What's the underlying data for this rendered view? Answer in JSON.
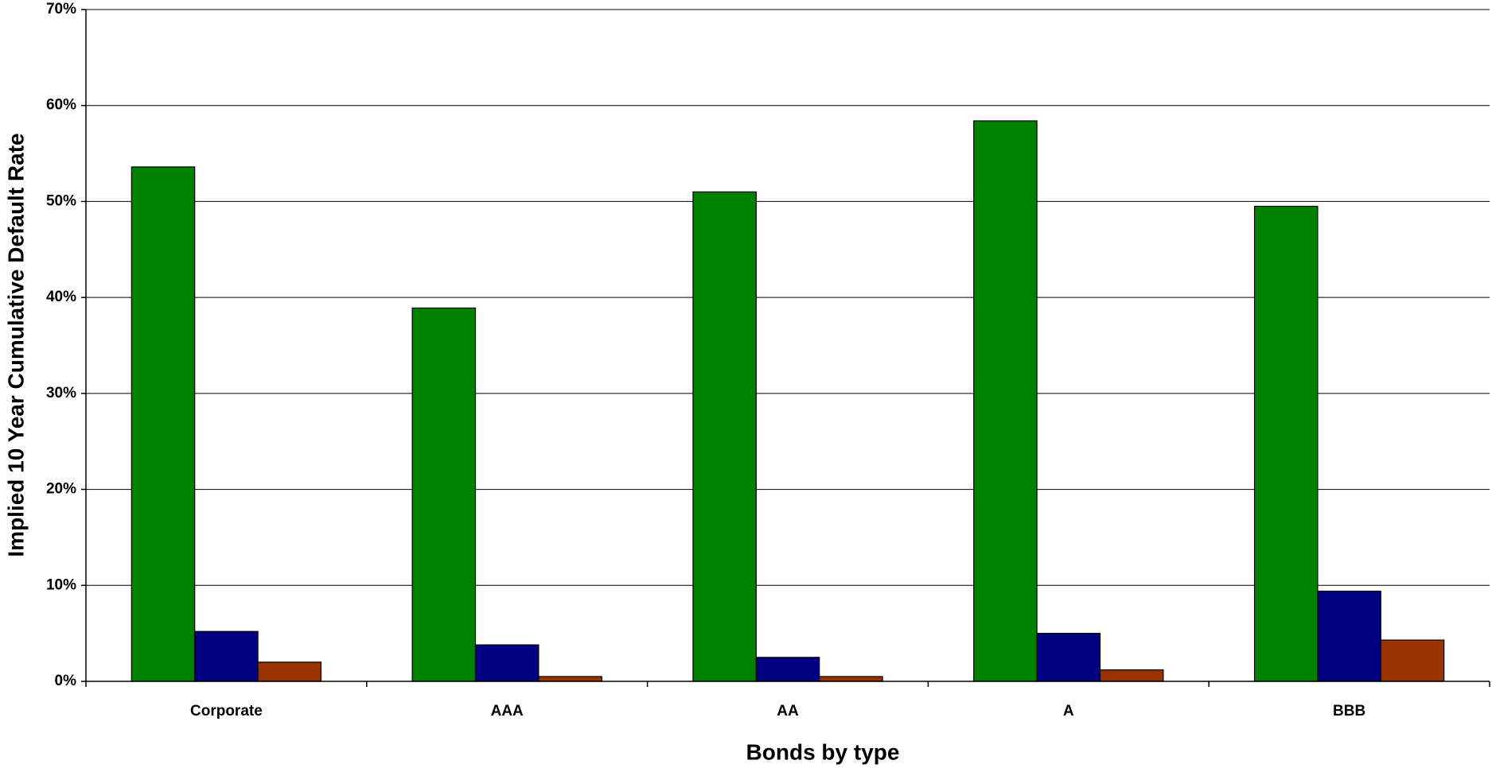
{
  "chart_data": {
    "type": "bar",
    "x_label": "Bonds by type",
    "y_label": "Implied 10 Year Cumulative Default Rate",
    "categories": [
      "Corporate",
      "AAA",
      "AA",
      "A",
      "BBB"
    ],
    "series": [
      {
        "color": "#008000",
        "values": [
          53.6,
          38.9,
          51.0,
          58.4,
          49.5
        ]
      },
      {
        "color": "#000080",
        "values": [
          5.2,
          3.8,
          2.5,
          5.0,
          9.4
        ]
      },
      {
        "color": "#993300",
        "values": [
          2.0,
          0.5,
          0.5,
          1.2,
          4.3
        ]
      }
    ],
    "ylim": [
      0,
      70
    ],
    "yticks": [
      {
        "value": 0,
        "label": "0%"
      },
      {
        "value": 10,
        "label": "10%"
      },
      {
        "value": 20,
        "label": "20%"
      },
      {
        "value": 30,
        "label": "30%"
      },
      {
        "value": 40,
        "label": "40%"
      },
      {
        "value": 50,
        "label": "50%"
      },
      {
        "value": 60,
        "label": "60%"
      },
      {
        "value": 70,
        "label": "70%"
      }
    ],
    "grid": true
  }
}
